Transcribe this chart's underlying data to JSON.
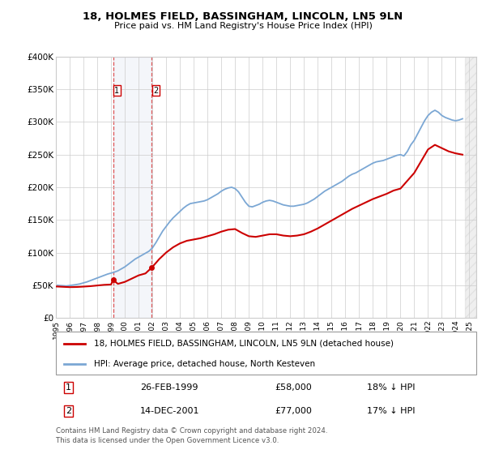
{
  "title": "18, HOLMES FIELD, BASSINGHAM, LINCOLN, LN5 9LN",
  "subtitle": "Price paid vs. HM Land Registry's House Price Index (HPI)",
  "ylabel_ticks": [
    "£0",
    "£50K",
    "£100K",
    "£150K",
    "£200K",
    "£250K",
    "£300K",
    "£350K",
    "£400K"
  ],
  "ylim": [
    0,
    400000
  ],
  "xlim_start": 1995.0,
  "xlim_end": 2025.5,
  "hpi_color": "#7ba7d4",
  "price_color": "#cc0000",
  "sale1_year": 1999.15,
  "sale1_price": 58000,
  "sale2_year": 2001.96,
  "sale2_price": 77000,
  "legend_label1": "18, HOLMES FIELD, BASSINGHAM, LINCOLN, LN5 9LN (detached house)",
  "legend_label2": "HPI: Average price, detached house, North Kesteven",
  "footer": "Contains HM Land Registry data © Crown copyright and database right 2024.\nThis data is licensed under the Open Government Licence v3.0.",
  "table_rows": [
    [
      "1",
      "26-FEB-1999",
      "£58,000",
      "18% ↓ HPI"
    ],
    [
      "2",
      "14-DEC-2001",
      "£77,000",
      "17% ↓ HPI"
    ]
  ],
  "hpi_data": [
    [
      1995.0,
      50000
    ],
    [
      1995.25,
      49500
    ],
    [
      1995.5,
      49200
    ],
    [
      1995.75,
      48800
    ],
    [
      1996.0,
      49500
    ],
    [
      1996.25,
      50200
    ],
    [
      1996.5,
      51000
    ],
    [
      1996.75,
      52000
    ],
    [
      1997.0,
      53500
    ],
    [
      1997.25,
      55000
    ],
    [
      1997.5,
      57000
    ],
    [
      1997.75,
      59000
    ],
    [
      1998.0,
      61000
    ],
    [
      1998.25,
      63000
    ],
    [
      1998.5,
      65000
    ],
    [
      1998.75,
      67000
    ],
    [
      1999.0,
      68500
    ],
    [
      1999.25,
      70000
    ],
    [
      1999.5,
      72000
    ],
    [
      1999.75,
      75000
    ],
    [
      2000.0,
      78000
    ],
    [
      2000.25,
      82000
    ],
    [
      2000.5,
      86000
    ],
    [
      2000.75,
      90000
    ],
    [
      2001.0,
      93000
    ],
    [
      2001.25,
      96000
    ],
    [
      2001.5,
      99000
    ],
    [
      2001.75,
      102000
    ],
    [
      2002.0,
      107000
    ],
    [
      2002.25,
      115000
    ],
    [
      2002.5,
      124000
    ],
    [
      2002.75,
      133000
    ],
    [
      2003.0,
      140000
    ],
    [
      2003.25,
      147000
    ],
    [
      2003.5,
      153000
    ],
    [
      2003.75,
      158000
    ],
    [
      2004.0,
      163000
    ],
    [
      2004.25,
      168000
    ],
    [
      2004.5,
      172000
    ],
    [
      2004.75,
      175000
    ],
    [
      2005.0,
      176000
    ],
    [
      2005.25,
      177000
    ],
    [
      2005.5,
      178000
    ],
    [
      2005.75,
      179000
    ],
    [
      2006.0,
      181000
    ],
    [
      2006.25,
      184000
    ],
    [
      2006.5,
      187000
    ],
    [
      2006.75,
      190000
    ],
    [
      2007.0,
      194000
    ],
    [
      2007.25,
      197000
    ],
    [
      2007.5,
      199000
    ],
    [
      2007.75,
      200000
    ],
    [
      2008.0,
      198000
    ],
    [
      2008.25,
      193000
    ],
    [
      2008.5,
      185000
    ],
    [
      2008.75,
      177000
    ],
    [
      2009.0,
      171000
    ],
    [
      2009.25,
      170000
    ],
    [
      2009.5,
      172000
    ],
    [
      2009.75,
      174000
    ],
    [
      2010.0,
      177000
    ],
    [
      2010.25,
      179000
    ],
    [
      2010.5,
      180000
    ],
    [
      2010.75,
      179000
    ],
    [
      2011.0,
      177000
    ],
    [
      2011.25,
      175000
    ],
    [
      2011.5,
      173000
    ],
    [
      2011.75,
      172000
    ],
    [
      2012.0,
      171000
    ],
    [
      2012.25,
      171000
    ],
    [
      2012.5,
      172000
    ],
    [
      2012.75,
      173000
    ],
    [
      2013.0,
      174000
    ],
    [
      2013.25,
      176000
    ],
    [
      2013.5,
      179000
    ],
    [
      2013.75,
      182000
    ],
    [
      2014.0,
      186000
    ],
    [
      2014.25,
      190000
    ],
    [
      2014.5,
      194000
    ],
    [
      2014.75,
      197000
    ],
    [
      2015.0,
      200000
    ],
    [
      2015.25,
      203000
    ],
    [
      2015.5,
      206000
    ],
    [
      2015.75,
      209000
    ],
    [
      2016.0,
      213000
    ],
    [
      2016.25,
      217000
    ],
    [
      2016.5,
      220000
    ],
    [
      2016.75,
      222000
    ],
    [
      2017.0,
      225000
    ],
    [
      2017.25,
      228000
    ],
    [
      2017.5,
      231000
    ],
    [
      2017.75,
      234000
    ],
    [
      2018.0,
      237000
    ],
    [
      2018.25,
      239000
    ],
    [
      2018.5,
      240000
    ],
    [
      2018.75,
      241000
    ],
    [
      2019.0,
      243000
    ],
    [
      2019.25,
      245000
    ],
    [
      2019.5,
      247000
    ],
    [
      2019.75,
      249000
    ],
    [
      2020.0,
      250000
    ],
    [
      2020.25,
      248000
    ],
    [
      2020.5,
      255000
    ],
    [
      2020.75,
      265000
    ],
    [
      2021.0,
      272000
    ],
    [
      2021.25,
      282000
    ],
    [
      2021.5,
      292000
    ],
    [
      2021.75,
      302000
    ],
    [
      2022.0,
      310000
    ],
    [
      2022.25,
      315000
    ],
    [
      2022.5,
      318000
    ],
    [
      2022.75,
      315000
    ],
    [
      2023.0,
      310000
    ],
    [
      2023.25,
      307000
    ],
    [
      2023.5,
      305000
    ],
    [
      2023.75,
      303000
    ],
    [
      2024.0,
      302000
    ],
    [
      2024.25,
      303000
    ],
    [
      2024.5,
      305000
    ]
  ],
  "price_data": [
    [
      1995.0,
      48000
    ],
    [
      1995.5,
      47500
    ],
    [
      1996.0,
      47000
    ],
    [
      1996.5,
      47200
    ],
    [
      1997.0,
      47800
    ],
    [
      1997.5,
      48500
    ],
    [
      1998.0,
      49500
    ],
    [
      1998.5,
      50500
    ],
    [
      1999.0,
      51000
    ],
    [
      1999.15,
      58000
    ],
    [
      1999.5,
      52000
    ],
    [
      2000.0,
      55000
    ],
    [
      2000.5,
      60000
    ],
    [
      2001.0,
      65000
    ],
    [
      2001.5,
      68000
    ],
    [
      2001.96,
      77000
    ],
    [
      2002.0,
      78000
    ],
    [
      2002.5,
      90000
    ],
    [
      2003.0,
      100000
    ],
    [
      2003.5,
      108000
    ],
    [
      2004.0,
      114000
    ],
    [
      2004.5,
      118000
    ],
    [
      2005.0,
      120000
    ],
    [
      2005.5,
      122000
    ],
    [
      2006.0,
      125000
    ],
    [
      2006.5,
      128000
    ],
    [
      2007.0,
      132000
    ],
    [
      2007.5,
      135000
    ],
    [
      2008.0,
      136000
    ],
    [
      2008.5,
      130000
    ],
    [
      2009.0,
      125000
    ],
    [
      2009.5,
      124000
    ],
    [
      2010.0,
      126000
    ],
    [
      2010.5,
      128000
    ],
    [
      2011.0,
      128000
    ],
    [
      2011.5,
      126000
    ],
    [
      2012.0,
      125000
    ],
    [
      2012.5,
      126000
    ],
    [
      2013.0,
      128000
    ],
    [
      2013.5,
      132000
    ],
    [
      2014.0,
      137000
    ],
    [
      2014.5,
      143000
    ],
    [
      2015.0,
      149000
    ],
    [
      2015.5,
      155000
    ],
    [
      2016.0,
      161000
    ],
    [
      2016.5,
      167000
    ],
    [
      2017.0,
      172000
    ],
    [
      2017.5,
      177000
    ],
    [
      2018.0,
      182000
    ],
    [
      2018.5,
      186000
    ],
    [
      2019.0,
      190000
    ],
    [
      2019.5,
      195000
    ],
    [
      2020.0,
      198000
    ],
    [
      2020.5,
      210000
    ],
    [
      2021.0,
      222000
    ],
    [
      2021.5,
      240000
    ],
    [
      2022.0,
      258000
    ],
    [
      2022.5,
      265000
    ],
    [
      2023.0,
      260000
    ],
    [
      2023.5,
      255000
    ],
    [
      2024.0,
      252000
    ],
    [
      2024.5,
      250000
    ]
  ]
}
